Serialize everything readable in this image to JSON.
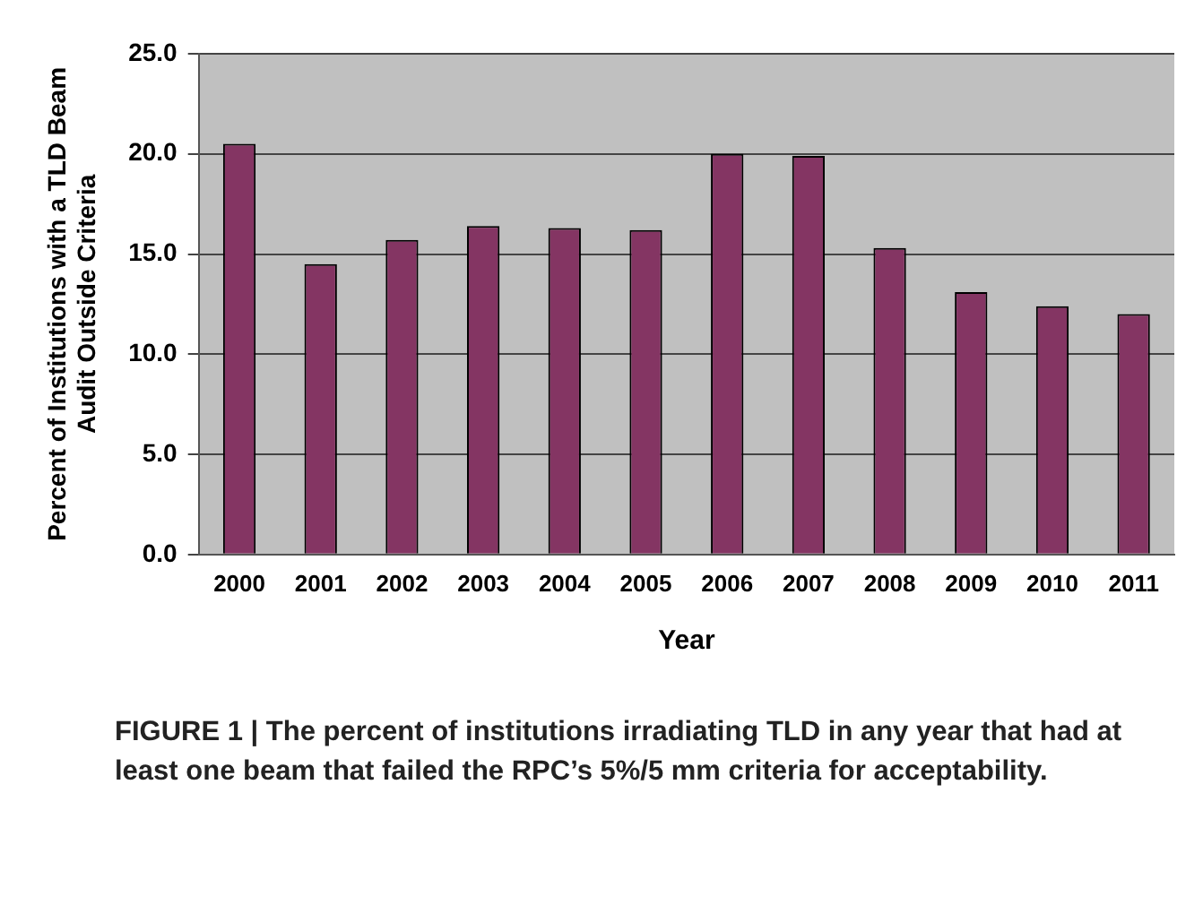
{
  "chart_data": {
    "type": "bar",
    "xlabel": "Year",
    "ylabel": "Percent of Institutions with a TLD Beam\nAudit Outside Criteria",
    "categories": [
      "2000",
      "2001",
      "2002",
      "2003",
      "2004",
      "2005",
      "2006",
      "2007",
      "2008",
      "2009",
      "2010",
      "2011"
    ],
    "values": [
      20.5,
      14.5,
      15.7,
      16.4,
      16.3,
      16.2,
      20.0,
      19.9,
      15.3,
      13.1,
      12.4,
      12.0
    ],
    "color": "#843563",
    "ylim": [
      0,
      25
    ],
    "yticks": [
      {
        "value": 0,
        "label": "0.0"
      },
      {
        "value": 5,
        "label": "5.0"
      },
      {
        "value": 10,
        "label": "10.0"
      },
      {
        "value": 15,
        "label": "15.0"
      },
      {
        "value": 20,
        "label": "20.0"
      },
      {
        "value": 25,
        "label": "25.0"
      }
    ],
    "grid": "y",
    "legend": false,
    "annotations": [
      "FIGURE 1 | The percent of institutions irradiating TLD in any year that had at least one beam that failed the RPC’s 5%/5 mm criteria for acceptability."
    ]
  }
}
